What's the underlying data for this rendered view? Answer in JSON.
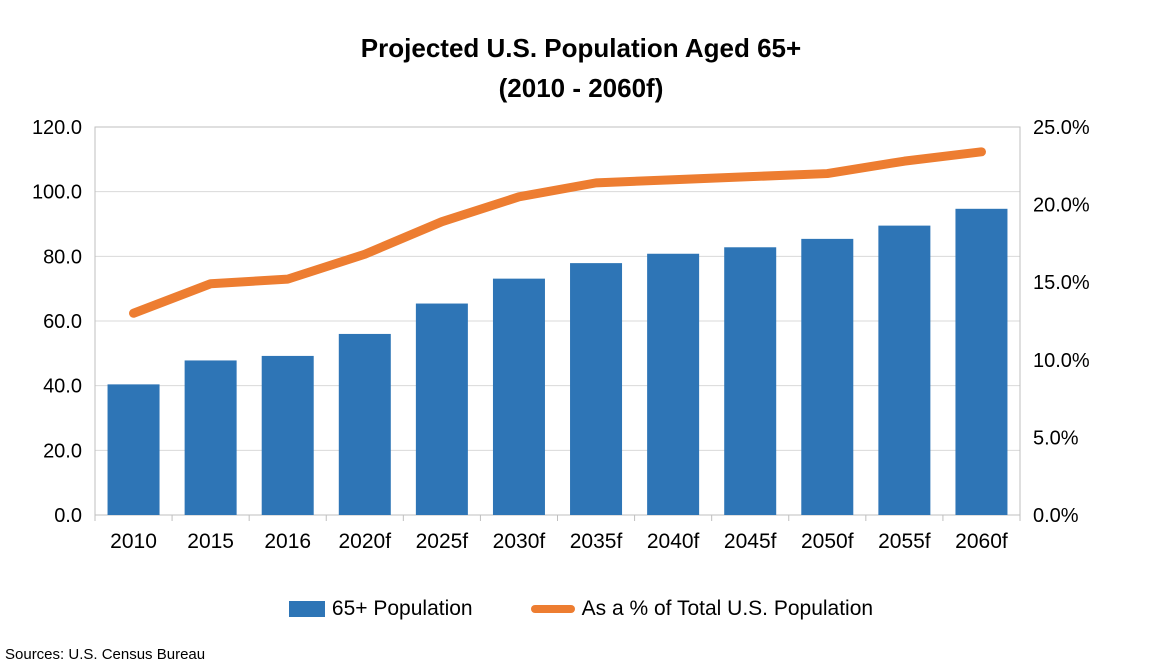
{
  "title": {
    "line1": "Projected U.S. Population Aged 65+",
    "line2": "(2010 - 2060f)"
  },
  "legend": {
    "bar_label": "65+ Population",
    "line_label": "As a % of Total U.S. Population"
  },
  "footer": {
    "sources": "Sources: U.S. Census Bureau"
  },
  "colors": {
    "bar": "#2E75B6",
    "line": "#ED7D31",
    "grid": "#D9D9D9",
    "border": "#BFBFBF",
    "text": "#000000"
  },
  "chart_data": {
    "type": "combo",
    "title": "Projected U.S. Population Aged 65+ (2010 - 2060f)",
    "categories": [
      "2010",
      "2015",
      "2016",
      "2020f",
      "2025f",
      "2030f",
      "2035f",
      "2040f",
      "2045f",
      "2050f",
      "2055f",
      "2060f"
    ],
    "series": [
      {
        "name": "65+ Population",
        "type": "bar",
        "axis": "left",
        "values": [
          40.4,
          47.8,
          49.2,
          56.0,
          65.4,
          73.1,
          77.9,
          80.8,
          82.8,
          85.4,
          89.5,
          94.7
        ]
      },
      {
        "name": "As a % of Total U.S. Population",
        "type": "line",
        "axis": "right",
        "values": [
          13.0,
          14.9,
          15.2,
          16.8,
          18.9,
          20.5,
          21.4,
          21.6,
          21.8,
          22.0,
          22.8,
          23.4
        ]
      }
    ],
    "left_axis": {
      "min": 0,
      "max": 120,
      "step": 20,
      "tick_labels": [
        "0.0",
        "20.0",
        "40.0",
        "60.0",
        "80.0",
        "100.0",
        "120.0"
      ]
    },
    "right_axis": {
      "min": 0,
      "max": 25,
      "step": 5,
      "tick_labels": [
        "0.0%",
        "5.0%",
        "10.0%",
        "15.0%",
        "20.0%",
        "25.0%"
      ]
    },
    "grid": true,
    "legend_position": "bottom"
  }
}
